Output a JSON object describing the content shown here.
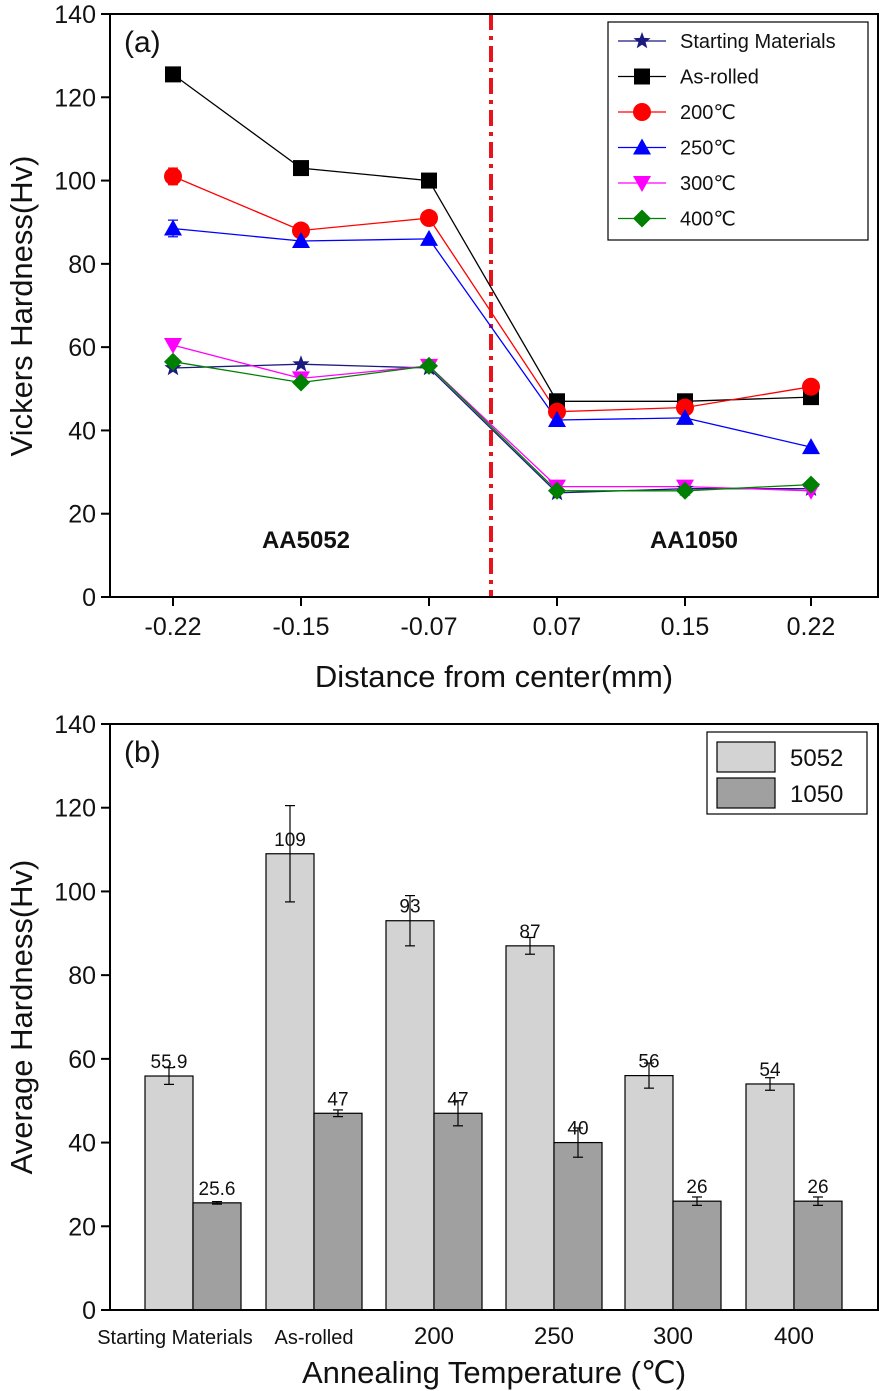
{
  "chart_data": [
    {
      "type": "line",
      "panel_label": "(a)",
      "xlabel": "Distance from center(mm)",
      "ylabel": "Vickers Hardness(Hv)",
      "categories": [
        "-0.22",
        "-0.15",
        "-0.07",
        "0.07",
        "0.15",
        "0.22"
      ],
      "ylim": [
        0,
        140
      ],
      "yticks": [
        "0",
        "20",
        "40",
        "60",
        "80",
        "100",
        "120",
        "140"
      ],
      "region_labels": [
        "AA5052",
        "AA1050"
      ],
      "divider": "center line between -0.07 and 0.07",
      "series": [
        {
          "name": "Starting Materials",
          "color": "#1a1a80",
          "marker": "star",
          "values": [
            55,
            55.9,
            55,
            25,
            26,
            26
          ]
        },
        {
          "name": "As-rolled",
          "color": "#000000",
          "marker": "square",
          "values": [
            125.5,
            103,
            100,
            47,
            47,
            48
          ],
          "errors": [
            1.5,
            0,
            0,
            0,
            0,
            0
          ]
        },
        {
          "name": "200℃",
          "color": "#ff0000",
          "marker": "circle",
          "values": [
            101,
            88,
            91,
            44.5,
            45.5,
            50.5
          ],
          "errors": [
            2,
            0,
            1.5,
            0,
            0,
            0
          ]
        },
        {
          "name": "250℃",
          "color": "#0000ff",
          "marker": "triangle-up",
          "values": [
            88.5,
            85.5,
            86,
            42.5,
            43,
            36
          ],
          "errors": [
            2,
            0,
            0,
            0,
            0,
            0
          ]
        },
        {
          "name": "300℃",
          "color": "#ff00ff",
          "marker": "triangle-down",
          "values": [
            60.5,
            52.5,
            55.5,
            26.5,
            26.5,
            25.5
          ]
        },
        {
          "name": "400℃",
          "color": "#008000",
          "marker": "diamond",
          "values": [
            56.5,
            51.5,
            55.5,
            25.5,
            25.5,
            27
          ]
        }
      ]
    },
    {
      "type": "bar",
      "panel_label": "(b)",
      "xlabel": "Annealing Temperature (℃)",
      "ylabel": "Average Hardness(Hv)",
      "categories": [
        "Starting Materials",
        "As-rolled",
        "200",
        "250",
        "300",
        "400"
      ],
      "ylim": [
        0,
        140
      ],
      "yticks": [
        "0",
        "20",
        "40",
        "60",
        "80",
        "100",
        "120",
        "140"
      ],
      "series": [
        {
          "name": "5052",
          "color": "#d3d3d3",
          "values": [
            55.9,
            109,
            93,
            87,
            56,
            54
          ],
          "errors": [
            2,
            11.5,
            6,
            2,
            3,
            1.5
          ],
          "labels": [
            "55.9",
            "109",
            "93",
            "87",
            "56",
            "54"
          ]
        },
        {
          "name": "1050",
          "color": "#a0a0a0",
          "values": [
            25.6,
            47,
            47,
            40,
            26,
            26
          ],
          "errors": [
            0.3,
            0.8,
            3,
            3.5,
            1,
            1
          ],
          "labels": [
            "25.6",
            "47",
            "47",
            "40",
            "26",
            "26"
          ]
        }
      ]
    }
  ]
}
